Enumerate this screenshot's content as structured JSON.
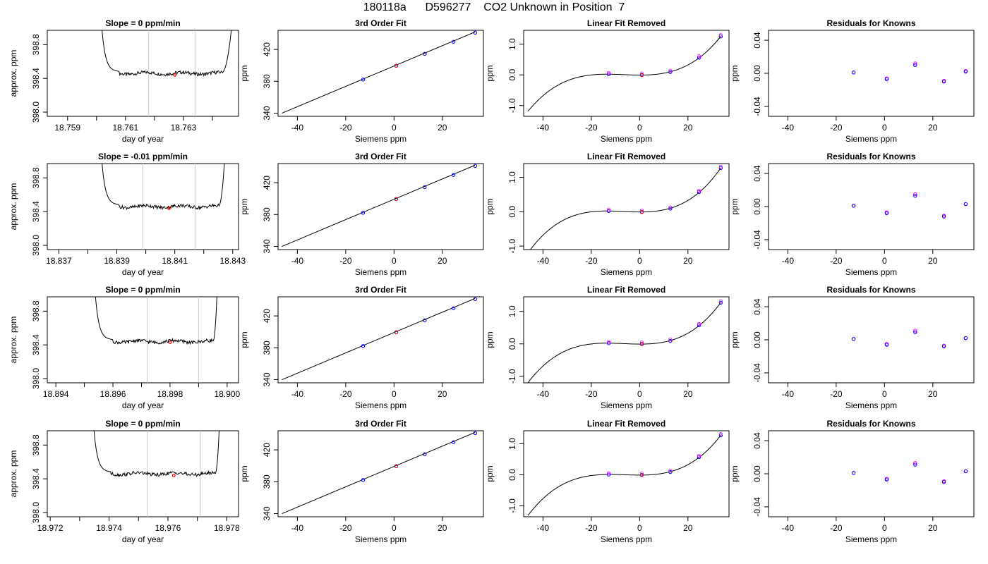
{
  "figure": {
    "title": "180118a      D596277    CO2 Unknown in Position  7"
  },
  "colors": {
    "line": "#000000",
    "known_points": "#0000ff",
    "unknown_point": "#ff0000",
    "residual_a": "#ff00ff",
    "residual_b": "#0000ff",
    "cursor_lines": "#c8c8c8"
  },
  "chart_data": [
    {
      "panel": "row1-timeseries",
      "type": "line",
      "title": "Slope =  0  ppm/min",
      "xlabel": "day of year",
      "ylabel": "approx. ppm",
      "xlim": [
        18.7583,
        18.7649
      ],
      "ylim": [
        397.95,
        398.97
      ],
      "xticks": [
        "18.759",
        "18.761",
        "18.763"
      ],
      "xtick_values": [
        18.759,
        18.761,
        18.763
      ],
      "xminor": [
        18.76,
        18.762,
        18.764
      ],
      "yticks": [
        "398.0",
        "398.4",
        "398.8"
      ],
      "ytick_values": [
        398.0,
        398.4,
        398.8
      ],
      "vlines": [
        18.7618,
        18.7634
      ],
      "start": 18.7601,
      "flat_end": 18.7643,
      "end": 18.7648,
      "level": 398.46,
      "highlight": {
        "x": 18.7627,
        "y": 398.44
      }
    },
    {
      "panel": "row1-fit",
      "type": "scatter",
      "title": "3rd Order Fit",
      "xlabel": "Siemens ppm",
      "ylabel": "ppm",
      "xlim": [
        -48,
        37
      ],
      "ylim": [
        336,
        444
      ],
      "xticks": [
        "-40",
        "-20",
        "0",
        "20"
      ],
      "xtick_values": [
        -40,
        -20,
        0,
        20
      ],
      "yticks": [
        "340",
        "380",
        "420"
      ],
      "ytick_values": [
        340,
        380,
        420
      ],
      "fit": {
        "x0": -46.4,
        "y0": 339.9,
        "x1": 33.5,
        "y1": 441.9
      },
      "knowns": [
        {
          "x": -12.8,
          "y": 382.2
        },
        {
          "x": 0.9,
          "y": 399.6
        },
        {
          "x": 12.7,
          "y": 414.4
        },
        {
          "x": 24.6,
          "y": 429.6
        },
        {
          "x": 33.6,
          "y": 441.1
        }
      ],
      "unknown": {
        "x": 0.9,
        "y": 399.4
      }
    },
    {
      "panel": "row1-linear-removed",
      "type": "line",
      "title": "Linear Fit Removed",
      "xlabel": "Siemens ppm",
      "ylabel": "ppm",
      "xlim": [
        -48,
        37
      ],
      "ylim": [
        -1.35,
        1.45
      ],
      "xticks": [
        "-40",
        "-20",
        "0",
        "20"
      ],
      "xtick_values": [
        -40,
        -20,
        0,
        20
      ],
      "yticks": [
        "-1.0",
        "0.0",
        "1.0"
      ],
      "ytick_values": [
        -1.0,
        0.0,
        1.0
      ],
      "curve_x_range": [
        -46.2,
        33.6
      ],
      "knowns": [
        {
          "x": -12.8,
          "y": 0.02
        },
        {
          "x": 0.9,
          "y": 0.0
        },
        {
          "x": 12.7,
          "y": 0.09
        },
        {
          "x": 24.6,
          "y": 0.56
        },
        {
          "x": 33.6,
          "y": 1.25
        }
      ],
      "unknown": {
        "x": 0.9,
        "y": -0.01
      }
    },
    {
      "panel": "row1-residuals",
      "type": "scatter",
      "title": "Residuals for Knowns",
      "xlabel": "Siemens ppm",
      "ylabel": "ppm",
      "xlim": [
        -48,
        37
      ],
      "ylim": [
        -0.052,
        0.052
      ],
      "xticks": [
        "-40",
        "-20",
        "0",
        "20"
      ],
      "xtick_values": [
        -40,
        -20,
        0,
        20
      ],
      "yticks": [
        "-0.04",
        "0.00",
        "0.04"
      ],
      "ytick_values": [
        -0.04,
        0.0,
        0.04
      ],
      "residuals_a": [
        {
          "x": -12.8,
          "y": 0.001
        },
        {
          "x": 0.9,
          "y": -0.006
        },
        {
          "x": 12.7,
          "y": 0.012
        },
        {
          "x": 24.6,
          "y": -0.009
        },
        {
          "x": 33.6,
          "y": 0.003
        }
      ],
      "residuals_b": [
        {
          "x": -12.8,
          "y": 0.001
        },
        {
          "x": 0.9,
          "y": -0.007
        },
        {
          "x": 12.7,
          "y": 0.01
        },
        {
          "x": 24.6,
          "y": -0.01
        },
        {
          "x": 33.6,
          "y": 0.002
        }
      ]
    },
    {
      "panel": "row2-timeseries",
      "type": "line",
      "title": "Slope =  -0.01  ppm/min",
      "xlabel": "day of year",
      "ylabel": "approx. ppm",
      "xlim": [
        18.8366,
        18.8432
      ],
      "ylim": [
        397.95,
        398.97
      ],
      "xticks": [
        "18.837",
        "18.839",
        "18.841",
        "18.843"
      ],
      "xtick_values": [
        18.837,
        18.839,
        18.841,
        18.843
      ],
      "xminor": [
        18.838,
        18.84,
        18.842
      ],
      "yticks": [
        "398.0",
        "398.4",
        "398.8"
      ],
      "ytick_values": [
        398.0,
        398.4,
        398.8
      ],
      "vlines": [
        18.8399,
        18.8417
      ],
      "start": 18.8384,
      "flat_end": 18.8425,
      "end": 18.8428,
      "level": 398.46,
      "highlight": {
        "x": 18.8408,
        "y": 398.44
      }
    },
    {
      "panel": "row2-fit",
      "type": "scatter",
      "title": "3rd Order Fit",
      "xlabel": "Siemens ppm",
      "ylabel": "ppm",
      "xlim": [
        -48,
        37
      ],
      "ylim": [
        336,
        444
      ],
      "xticks": [
        "-40",
        "-20",
        "0",
        "20"
      ],
      "xtick_values": [
        -40,
        -20,
        0,
        20
      ],
      "yticks": [
        "340",
        "380",
        "420"
      ],
      "ytick_values": [
        340,
        380,
        420
      ],
      "fit": {
        "x0": -46.4,
        "y0": 339.9,
        "x1": 33.5,
        "y1": 441.9
      },
      "knowns": [
        {
          "x": -12.8,
          "y": 382.2
        },
        {
          "x": 0.9,
          "y": 399.6
        },
        {
          "x": 12.7,
          "y": 414.4
        },
        {
          "x": 24.6,
          "y": 429.6
        },
        {
          "x": 33.6,
          "y": 441.1
        }
      ],
      "unknown": {
        "x": 0.9,
        "y": 399.4
      }
    },
    {
      "panel": "row2-linear-removed",
      "type": "line",
      "title": "Linear Fit Removed",
      "xlabel": "Siemens ppm",
      "ylabel": "ppm",
      "xlim": [
        -48,
        37
      ],
      "ylim": [
        -1.1,
        1.4
      ],
      "xticks": [
        "-40",
        "-20",
        "0",
        "20"
      ],
      "xtick_values": [
        -40,
        -20,
        0,
        20
      ],
      "yticks": [
        "-1.0",
        "0.0",
        "1.0"
      ],
      "ytick_values": [
        -1.0,
        0.0,
        1.0
      ],
      "curve_x_range": [
        -46.2,
        33.6
      ],
      "knowns": [
        {
          "x": -12.8,
          "y": 0.02
        },
        {
          "x": 0.9,
          "y": 0.0
        },
        {
          "x": 12.7,
          "y": 0.09
        },
        {
          "x": 24.6,
          "y": 0.57
        },
        {
          "x": 33.6,
          "y": 1.27
        }
      ],
      "unknown": {
        "x": 0.9,
        "y": -0.01
      }
    },
    {
      "panel": "row2-residuals",
      "type": "scatter",
      "title": "Residuals for Knowns",
      "xlabel": "Siemens ppm",
      "ylabel": "ppm",
      "xlim": [
        -48,
        37
      ],
      "ylim": [
        -0.052,
        0.052
      ],
      "xticks": [
        "-40",
        "-20",
        "0",
        "20"
      ],
      "xtick_values": [
        -40,
        -20,
        0,
        20
      ],
      "yticks": [
        "-0.04",
        "0.00",
        "0.04"
      ],
      "ytick_values": [
        -0.04,
        0.0,
        0.04
      ],
      "residuals_a": [
        {
          "x": -12.8,
          "y": 0.001
        },
        {
          "x": 0.9,
          "y": -0.007
        },
        {
          "x": 12.7,
          "y": 0.015
        },
        {
          "x": 24.6,
          "y": -0.011
        },
        {
          "x": 33.6,
          "y": 0.003
        }
      ],
      "residuals_b": [
        {
          "x": -12.8,
          "y": 0.001
        },
        {
          "x": 0.9,
          "y": -0.008
        },
        {
          "x": 12.7,
          "y": 0.013
        },
        {
          "x": 24.6,
          "y": -0.012
        },
        {
          "x": 33.6,
          "y": 0.003
        }
      ]
    },
    {
      "panel": "row3-timeseries",
      "type": "line",
      "title": "Slope =  0  ppm/min",
      "xlabel": "day of year",
      "ylabel": "approx. ppm",
      "xlim": [
        18.8937,
        18.9004
      ],
      "ylim": [
        397.95,
        398.97
      ],
      "xticks": [
        "18.894",
        "18.896",
        "18.898",
        "18.900"
      ],
      "xtick_values": [
        18.894,
        18.896,
        18.898,
        18.9
      ],
      "xminor": [
        18.895,
        18.897,
        18.899
      ],
      "yticks": [
        "398.0",
        "398.4",
        "398.8"
      ],
      "ytick_values": [
        398.0,
        398.4,
        398.8
      ],
      "vlines": [
        18.8972,
        18.899
      ],
      "start": 18.8953,
      "flat_end": 18.8995,
      "end": 18.8997,
      "level": 398.44,
      "highlight": {
        "x": 18.898,
        "y": 398.43
      }
    },
    {
      "panel": "row3-fit",
      "type": "scatter",
      "title": "3rd Order Fit",
      "xlabel": "Siemens ppm",
      "ylabel": "ppm",
      "xlim": [
        -48,
        37
      ],
      "ylim": [
        336,
        444
      ],
      "xticks": [
        "-40",
        "-20",
        "0",
        "20"
      ],
      "xtick_values": [
        -40,
        -20,
        0,
        20
      ],
      "yticks": [
        "340",
        "380",
        "420"
      ],
      "ytick_values": [
        340,
        380,
        420
      ],
      "fit": {
        "x0": -46.4,
        "y0": 339.9,
        "x1": 33.5,
        "y1": 441.9
      },
      "knowns": [
        {
          "x": -12.8,
          "y": 382.2
        },
        {
          "x": 0.9,
          "y": 399.6
        },
        {
          "x": 12.7,
          "y": 414.4
        },
        {
          "x": 24.6,
          "y": 429.6
        },
        {
          "x": 33.6,
          "y": 441.1
        }
      ],
      "unknown": {
        "x": 0.9,
        "y": 399.4
      }
    },
    {
      "panel": "row3-linear-removed",
      "type": "line",
      "title": "Linear Fit Removed",
      "xlabel": "Siemens ppm",
      "ylabel": "ppm",
      "xlim": [
        -48,
        37
      ],
      "ylim": [
        -1.2,
        1.45
      ],
      "xticks": [
        "-40",
        "-20",
        "0",
        "20"
      ],
      "xtick_values": [
        -40,
        -20,
        0,
        20
      ],
      "yticks": [
        "-1.0",
        "0.0",
        "1.0"
      ],
      "ytick_values": [
        -1.0,
        0.0,
        1.0
      ],
      "curve_x_range": [
        -46.2,
        33.6
      ],
      "knowns": [
        {
          "x": -12.8,
          "y": 0.02
        },
        {
          "x": 0.9,
          "y": 0.0
        },
        {
          "x": 12.7,
          "y": 0.09
        },
        {
          "x": 24.6,
          "y": 0.57
        },
        {
          "x": 33.6,
          "y": 1.27
        }
      ],
      "unknown": {
        "x": 0.9,
        "y": -0.01
      }
    },
    {
      "panel": "row3-residuals",
      "type": "scatter",
      "title": "Residuals for Knowns",
      "xlabel": "Siemens ppm",
      "ylabel": "ppm",
      "xlim": [
        -48,
        37
      ],
      "ylim": [
        -0.052,
        0.052
      ],
      "xticks": [
        "-40",
        "-20",
        "0",
        "20"
      ],
      "xtick_values": [
        -40,
        -20,
        0,
        20
      ],
      "yticks": [
        "-0.04",
        "0.00",
        "0.04"
      ],
      "ytick_values": [
        -0.04,
        0.0,
        0.04
      ],
      "residuals_a": [
        {
          "x": -12.8,
          "y": 0.001
        },
        {
          "x": 0.9,
          "y": -0.005
        },
        {
          "x": 12.7,
          "y": 0.011
        },
        {
          "x": 24.6,
          "y": -0.007
        },
        {
          "x": 33.6,
          "y": 0.002
        }
      ],
      "residuals_b": [
        {
          "x": -12.8,
          "y": 0.001
        },
        {
          "x": 0.9,
          "y": -0.006
        },
        {
          "x": 12.7,
          "y": 0.009
        },
        {
          "x": 24.6,
          "y": -0.008
        },
        {
          "x": 33.6,
          "y": 0.002
        }
      ]
    },
    {
      "panel": "row4-timeseries",
      "type": "line",
      "title": "Slope =  0  ppm/min",
      "xlabel": "day of year",
      "ylabel": "approx. ppm",
      "xlim": [
        18.9719,
        18.9784
      ],
      "ylim": [
        397.95,
        398.97
      ],
      "xticks": [
        "18.972",
        "18.974",
        "18.976",
        "18.978"
      ],
      "xtick_values": [
        18.972,
        18.974,
        18.976,
        18.978
      ],
      "xminor": [
        18.973,
        18.975,
        18.977
      ],
      "yticks": [
        "398.0",
        "398.4",
        "398.8"
      ],
      "ytick_values": [
        398.0,
        398.4,
        398.8
      ],
      "vlines": [
        18.9753,
        18.9771
      ],
      "start": 18.9734,
      "flat_end": 18.9776,
      "end": 18.9778,
      "level": 398.46,
      "highlight": {
        "x": 18.9762,
        "y": 398.44
      }
    },
    {
      "panel": "row4-fit",
      "type": "scatter",
      "title": "3rd Order Fit",
      "xlabel": "Siemens ppm",
      "ylabel": "ppm",
      "xlim": [
        -48,
        37
      ],
      "ylim": [
        336,
        444
      ],
      "xticks": [
        "-40",
        "-20",
        "0",
        "20"
      ],
      "xtick_values": [
        -40,
        -20,
        0,
        20
      ],
      "yticks": [
        "340",
        "380",
        "420"
      ],
      "ytick_values": [
        340,
        380,
        420
      ],
      "fit": {
        "x0": -46.4,
        "y0": 339.9,
        "x1": 33.5,
        "y1": 441.9
      },
      "knowns": [
        {
          "x": -12.8,
          "y": 382.2
        },
        {
          "x": 0.9,
          "y": 399.6
        },
        {
          "x": 12.7,
          "y": 414.4
        },
        {
          "x": 24.6,
          "y": 429.6
        },
        {
          "x": 33.6,
          "y": 441.1
        }
      ],
      "unknown": {
        "x": 0.9,
        "y": 399.4
      }
    },
    {
      "panel": "row4-linear-removed",
      "type": "line",
      "title": "Linear Fit Removed",
      "xlabel": "Siemens ppm",
      "ylabel": "ppm",
      "xlim": [
        -48,
        37
      ],
      "ylim": [
        -1.35,
        1.42
      ],
      "xticks": [
        "-40",
        "-20",
        "0",
        "20"
      ],
      "xtick_values": [
        -40,
        -20,
        0,
        20
      ],
      "yticks": [
        "-1.0",
        "0.0",
        "1.0"
      ],
      "ytick_values": [
        -1.0,
        0.0,
        1.0
      ],
      "curve_x_range": [
        -46.2,
        33.6
      ],
      "knowns": [
        {
          "x": -12.8,
          "y": 0.01
        },
        {
          "x": 0.9,
          "y": 0.0
        },
        {
          "x": 12.7,
          "y": 0.09
        },
        {
          "x": 24.6,
          "y": 0.57
        },
        {
          "x": 33.6,
          "y": 1.27
        }
      ],
      "unknown": {
        "x": 0.9,
        "y": -0.01
      }
    },
    {
      "panel": "row4-residuals",
      "type": "scatter",
      "title": "Residuals for Knowns",
      "xlabel": "Siemens ppm",
      "ylabel": "ppm",
      "xlim": [
        -48,
        37
      ],
      "ylim": [
        -0.052,
        0.052
      ],
      "xticks": [
        "-40",
        "-20",
        "0",
        "20"
      ],
      "xtick_values": [
        -40,
        -20,
        0,
        20
      ],
      "yticks": [
        "-0.04",
        "0.00",
        "0.04"
      ],
      "ytick_values": [
        -0.04,
        0.0,
        0.04
      ],
      "residuals_a": [
        {
          "x": -12.8,
          "y": 0.001
        },
        {
          "x": 0.9,
          "y": -0.006
        },
        {
          "x": 12.7,
          "y": 0.013
        },
        {
          "x": 24.6,
          "y": -0.009
        },
        {
          "x": 33.6,
          "y": 0.003
        }
      ],
      "residuals_b": [
        {
          "x": -12.8,
          "y": 0.001
        },
        {
          "x": 0.9,
          "y": -0.007
        },
        {
          "x": 12.7,
          "y": 0.011
        },
        {
          "x": 24.6,
          "y": -0.01
        },
        {
          "x": 33.6,
          "y": 0.003
        }
      ]
    }
  ]
}
